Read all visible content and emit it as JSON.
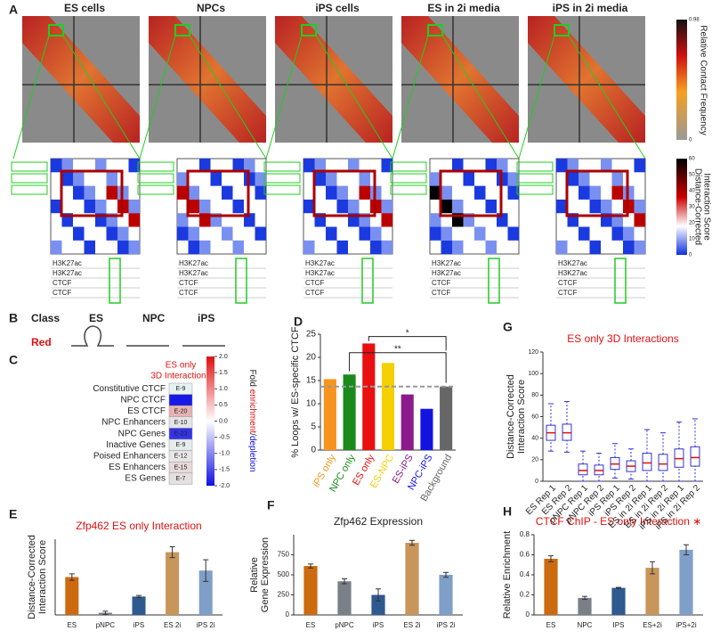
{
  "figure": {
    "panel_letters": [
      "A",
      "B",
      "C",
      "D",
      "E",
      "F",
      "G",
      "H"
    ],
    "panel_a": {
      "titles": [
        "ES cells",
        "NPCs",
        "iPS cells",
        "ES in 2i media",
        "iPS in 2i media"
      ],
      "colorbar_top": {
        "label": "Relative Contact Frequency",
        "ticks": [
          0.98,
          0
        ]
      },
      "colorbar_bottom": {
        "label": [
          "Distance-Corrected",
          "Interaction Score"
        ],
        "ticks": [
          60,
          50,
          40,
          30,
          20,
          10,
          0
        ]
      },
      "tracks": [
        "H3K27ac",
        "H3K27ac",
        "CTCF",
        "CTCF"
      ]
    },
    "panel_b": {
      "header": [
        "Class",
        "ES",
        "NPC",
        "iPS"
      ],
      "row": "Red"
    }
  },
  "chart_data": [
    {
      "type": "heatmap",
      "title": [
        "ES only",
        "3D Interactions"
      ],
      "rows": [
        "Constitutive CTCF",
        "NPC CTCF",
        "ES CTCF",
        "NPC Enhancers",
        "NPC Genes",
        "Inactive Genes",
        "Poised Enhancers",
        "ES Enhancers",
        "ES Genes"
      ],
      "values": [
        0.1,
        -1.8,
        0.6,
        0.2,
        -1.6,
        0.15,
        -0.2,
        0.3,
        0.25
      ],
      "cell_labels": [
        "E-9",
        null,
        "E-20",
        "E-10",
        "E-23",
        "E-9",
        "E-12",
        "E-15",
        "E-7"
      ],
      "clim": [
        -2,
        2
      ],
      "cticks": [
        {
          "value": 2,
          "label": "2.0"
        },
        1.5,
        {
          "value": 1,
          "label": "1.0"
        },
        0.5,
        {
          "value": 0,
          "label": "0.0"
        },
        -0.5,
        {
          "value": -1,
          "label": "-1.0"
        },
        -1.5,
        {
          "value": -2,
          "label": "-2.0"
        }
      ],
      "clabel": [
        "Fold ",
        "enrichment",
        "/",
        "depletion"
      ]
    },
    {
      "type": "bar",
      "ylabel": [
        "% Loops w/ ES-specific CTCF"
      ],
      "categories": [
        "iPS only",
        "NPC only",
        "ES only",
        "ES-NPC",
        "ES-iPS",
        "NPC-iPS",
        "Background"
      ],
      "values": [
        15.3,
        16.3,
        23,
        18.8,
        12,
        8.9,
        13.7
      ],
      "colors": [
        "#f7941d",
        "#1a8a1a",
        "#e81010",
        "#f5d000",
        "#8b1a8b",
        "#1414e0",
        "#666666"
      ],
      "ylim": [
        0,
        25
      ],
      "yticks": [
        0,
        5,
        10,
        15,
        20,
        25
      ],
      "hline": 13.7,
      "annotations": [
        "**",
        "*"
      ]
    },
    {
      "type": "box",
      "title": [
        "ES only 3D Interactions"
      ],
      "ylabel": [
        "Distance-Corrected",
        "Interaction Score"
      ],
      "categories": [
        "ES Rep 1",
        "ES Rep 2",
        "pNPC Rep 1",
        "pNPC Rep 2",
        "iPS Rep 1",
        "iPS Rep 2",
        "ES in 2i Rep 1",
        "ES in 2i Rep 2",
        "iPS in 2i Rep 1",
        "iPS in 2i Rep 2"
      ],
      "whisker_low": [
        28,
        27,
        0,
        0,
        3,
        2,
        0,
        0,
        0,
        0
      ],
      "q1": [
        38,
        38,
        6,
        6,
        11,
        9,
        10,
        10,
        13,
        14
      ],
      "median": [
        45,
        45,
        10,
        10,
        16,
        14,
        17,
        16,
        21,
        22
      ],
      "q3": [
        52,
        53,
        16,
        15,
        22,
        19,
        26,
        25,
        30,
        32
      ],
      "whisker_high": [
        72,
        74,
        28,
        26,
        35,
        30,
        48,
        45,
        55,
        58
      ],
      "ylim": [
        0,
        120
      ],
      "yticks": [
        0,
        20,
        40,
        60,
        80,
        100,
        120
      ]
    },
    {
      "type": "bar",
      "title": [
        "Zfp462 ES only Interaction"
      ],
      "ylabel": [
        "Distance-Corrected",
        "Interaction Score"
      ],
      "categories": [
        "ES",
        "pNPC",
        "iPS",
        "ES 2i",
        "iPS 2i"
      ],
      "values": [
        35,
        2,
        17,
        58,
        41
      ],
      "errors": [
        3,
        1.5,
        1,
        5,
        10
      ],
      "colors": [
        "#cc6a10",
        "#7a8088",
        "#2f5a90",
        "#c8955a",
        "#7f9fc8"
      ],
      "ylim": [
        0,
        70
      ]
    },
    {
      "type": "bar",
      "title": [
        "Zfp462 Expression"
      ],
      "ylabel": [
        "Relative",
        "Gene Expression"
      ],
      "categories": [
        "ES",
        "pNPC",
        "iPS",
        "ES 2i",
        "iPS 2i"
      ],
      "values": [
        610,
        420,
        250,
        900,
        500
      ],
      "errors": [
        25,
        30,
        75,
        30,
        30
      ],
      "colors": [
        "#cc6a10",
        "#7a8088",
        "#2f5a90",
        "#c8955a",
        "#7f9fc8"
      ],
      "ylim": [
        0,
        1000
      ],
      "yticks": [
        0,
        250,
        500,
        750
      ]
    },
    {
      "type": "bar",
      "title": [
        "CTCF ChIP - ES only Interaction ∗"
      ],
      "ylabel": [
        "Relative Enrichment"
      ],
      "categories": [
        "ES",
        "NPC",
        "IPS",
        "ES+2i",
        "iPS+2i"
      ],
      "values": [
        0.56,
        0.17,
        0.27,
        0.47,
        0.65
      ],
      "errors": [
        0.03,
        0.015,
        0.005,
        0.06,
        0.05
      ],
      "colors": [
        "#cc6a10",
        "#7a8088",
        "#2f5a90",
        "#c8955a",
        "#7f9fc8"
      ],
      "ylim": [
        0,
        0.8
      ],
      "yticks": [
        0,
        0.2,
        0.4,
        0.6,
        0.8
      ]
    }
  ]
}
